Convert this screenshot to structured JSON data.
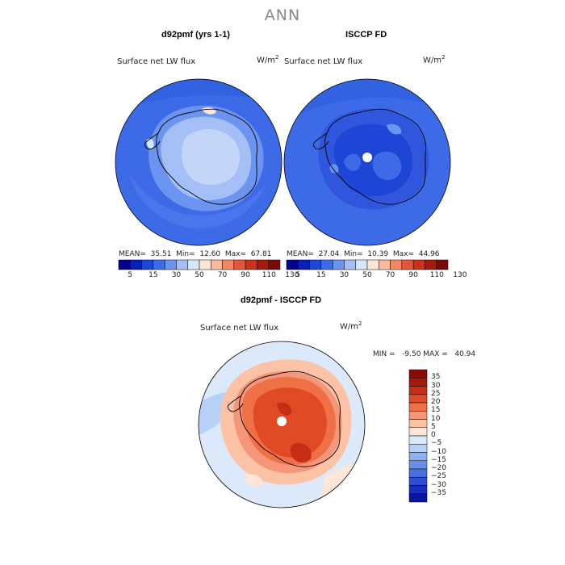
{
  "main_title": "ANN",
  "top_left": {
    "title": "d92pmf (yrs 1-1)",
    "field": "Surface net LW flux",
    "units": "W/m",
    "units_exp": "2",
    "stats": {
      "mean_label": "MEAN=",
      "mean": "35.51",
      "min_label": "Min=",
      "min": "12.60",
      "max_label": "Max=",
      "max": "67.81"
    }
  },
  "top_right": {
    "title": "ISCCP FD",
    "field": "Surface net LW flux",
    "units": "W/m",
    "units_exp": "2",
    "stats": {
      "mean_label": "MEAN=",
      "mean": "27.04",
      "min_label": "Min=",
      "min": "10.39",
      "max_label": "Max=",
      "max": "44.96"
    }
  },
  "top_colorbar": {
    "colors": [
      "#00008b",
      "#0a1fb4",
      "#1f45d6",
      "#3d6be8",
      "#6b93f0",
      "#a3bff6",
      "#d6e6fb",
      "#fde5d6",
      "#f8b9a0",
      "#f18566",
      "#e4563a",
      "#cc3218",
      "#a51a0c",
      "#7a0a05"
    ],
    "ticks": [
      "5",
      "15",
      "30",
      "50",
      "70",
      "90",
      "110",
      "130"
    ]
  },
  "bottom": {
    "title": "d92pmf - ISCCP FD",
    "field": "Surface net LW flux",
    "units": "W/m",
    "units_exp": "2",
    "stats": "MIN =   -9.50 MAX =   40.94",
    "colorbar_colors": [
      "#8b0a05",
      "#a8180b",
      "#c72c14",
      "#e04a25",
      "#ef6f46",
      "#f5967a",
      "#fbc2a6",
      "#fde6d6",
      "#dce9fb",
      "#b7d0f7",
      "#8fb1f1",
      "#6a8fe9",
      "#4a6de0",
      "#2f4cd2",
      "#1a2dbd",
      "#0a149e"
    ],
    "ticks": [
      "35",
      "30",
      "25",
      "20",
      "15",
      "10",
      "5",
      "0",
      "−5",
      "−10",
      "−15",
      "−20",
      "−25",
      "−30",
      "−35"
    ]
  }
}
